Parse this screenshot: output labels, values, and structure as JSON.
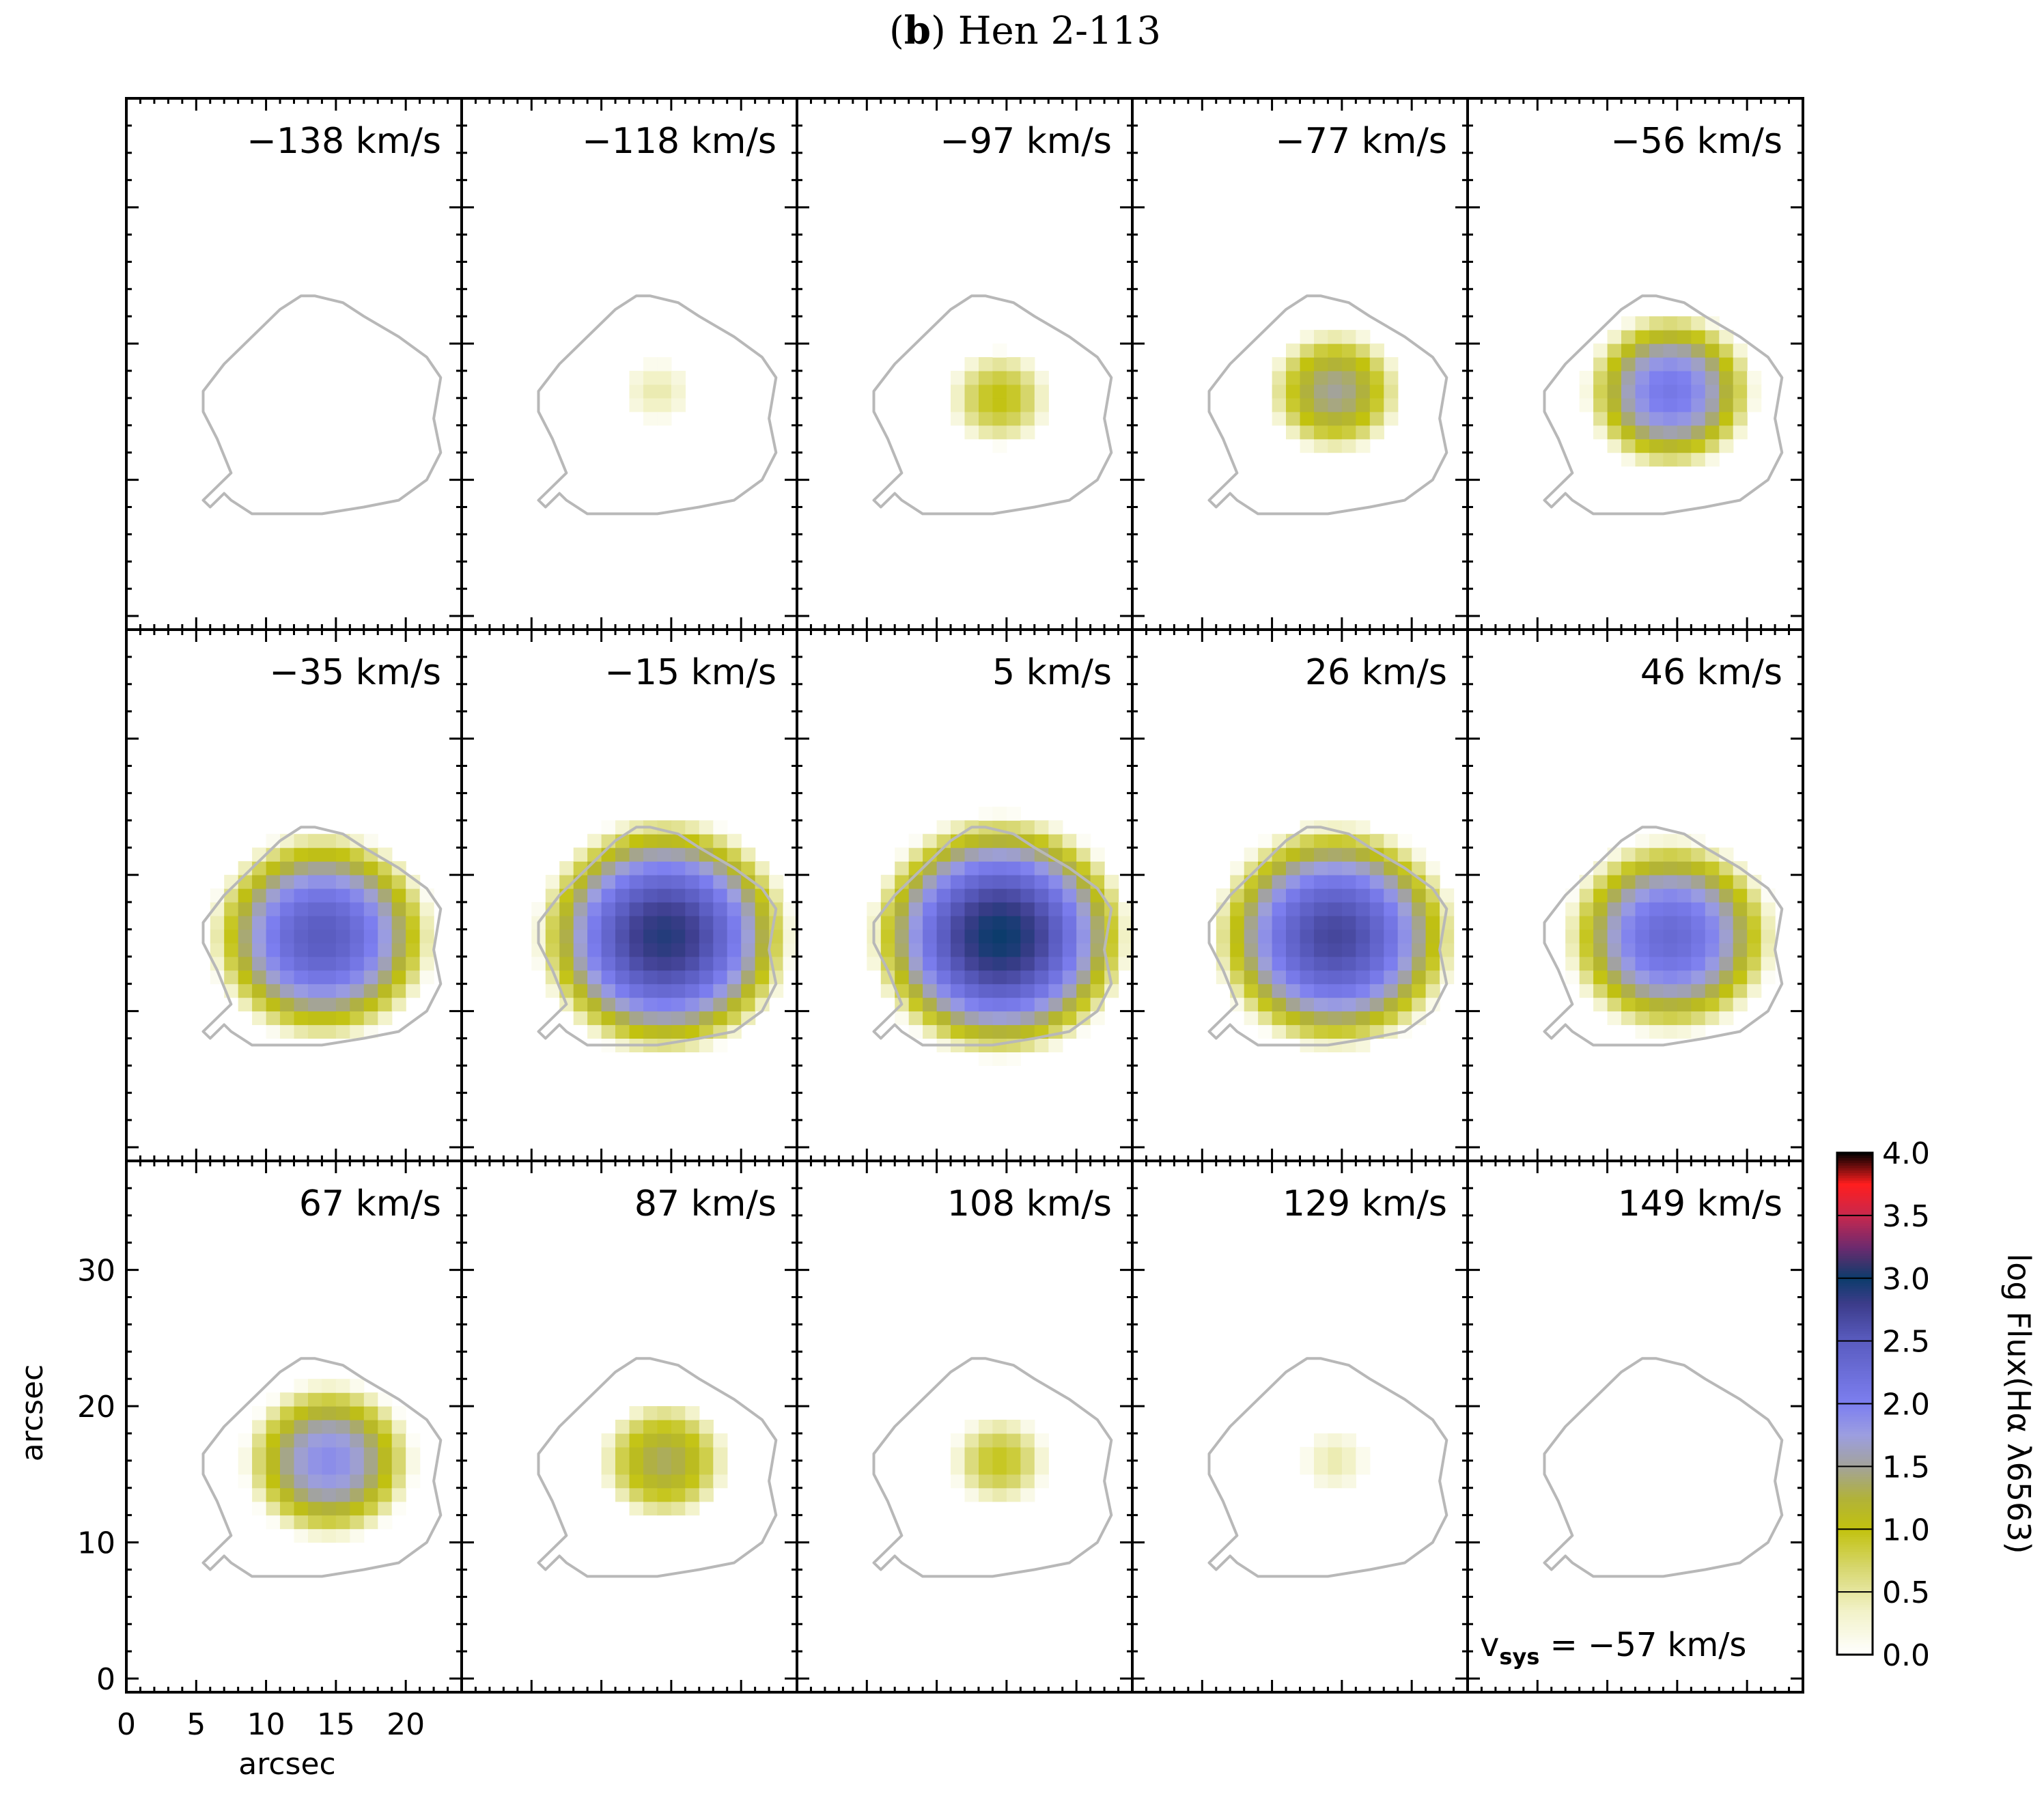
{
  "figure": {
    "panel_letter": "b",
    "title": "Hen 2-113",
    "vsys_symbol": "v",
    "vsys_subscript": "sys",
    "vsys_text": "= −57 km/s"
  },
  "chart_data": {
    "type": "heatmap",
    "title": "Hen 2-113",
    "quantity": "log Flux(Hα λ6563)",
    "xlabel": "arcsec",
    "ylabel": "arcsec",
    "xlim": [
      0,
      24
    ],
    "ylim": [
      -1,
      38
    ],
    "xticks": [
      0,
      5,
      10,
      15,
      20
    ],
    "yticks": [
      0,
      10,
      20,
      30
    ],
    "xtick_labels": [
      "0",
      "5",
      "10",
      "15",
      "20"
    ],
    "ytick_labels": [
      "0",
      "10",
      "20",
      "30"
    ],
    "grid": false,
    "systemic_velocity_kms": -57,
    "channels": [
      {
        "label": "−138 km/s",
        "velocity": -138,
        "center": [
          14.5,
          16.5
        ],
        "peak_log_flux": 0.0,
        "radius": 4.0
      },
      {
        "label": "−118 km/s",
        "velocity": -118,
        "center": [
          14.0,
          16.5
        ],
        "peak_log_flux": 0.45,
        "radius": 2.5
      },
      {
        "label": "−97 km/s",
        "velocity": -97,
        "center": [
          14.5,
          16.0
        ],
        "peak_log_flux": 1.0,
        "radius": 3.8
      },
      {
        "label": "−77 km/s",
        "velocity": -77,
        "center": [
          14.5,
          16.5
        ],
        "peak_log_flux": 1.5,
        "radius": 5.0
      },
      {
        "label": "−56 km/s",
        "velocity": -56,
        "center": [
          14.5,
          16.5
        ],
        "peak_log_flux": 2.1,
        "radius": 6.3
      },
      {
        "label": "−35 km/s",
        "velocity": -35,
        "center": [
          14.0,
          15.5
        ],
        "peak_log_flux": 2.5,
        "radius": 8.3
      },
      {
        "label": "−15 km/s",
        "velocity": -15,
        "center": [
          14.5,
          15.5
        ],
        "peak_log_flux": 2.9,
        "radius": 9.4
      },
      {
        "label": "5 km/s",
        "velocity": 5,
        "center": [
          14.5,
          15.5
        ],
        "peak_log_flux": 3.0,
        "radius": 9.6
      },
      {
        "label": "26 km/s",
        "velocity": 26,
        "center": [
          14.5,
          15.5
        ],
        "peak_log_flux": 2.7,
        "radius": 9.0
      },
      {
        "label": "46 km/s",
        "velocity": 46,
        "center": [
          14.5,
          15.5
        ],
        "peak_log_flux": 2.3,
        "radius": 7.8
      },
      {
        "label": "67 km/s",
        "velocity": 67,
        "center": [
          14.5,
          16.0
        ],
        "peak_log_flux": 1.9,
        "radius": 6.3
      },
      {
        "label": "87 km/s",
        "velocity": 87,
        "center": [
          14.5,
          16.0
        ],
        "peak_log_flux": 1.35,
        "radius": 4.8
      },
      {
        "label": "108 km/s",
        "velocity": 108,
        "center": [
          14.5,
          16.0
        ],
        "peak_log_flux": 0.95,
        "radius": 3.6
      },
      {
        "label": "129 km/s",
        "velocity": 129,
        "center": [
          14.5,
          16.0
        ],
        "peak_log_flux": 0.45,
        "radius": 2.4
      },
      {
        "label": "149 km/s",
        "velocity": 149,
        "center": [
          14.5,
          16.5
        ],
        "peak_log_flux": 0.0,
        "radius": 4.0
      }
    ],
    "contour_outline": [
      [
        12.5,
        23.5
      ],
      [
        13.5,
        23.5
      ],
      [
        15.5,
        23
      ],
      [
        17,
        22
      ],
      [
        19.5,
        20.5
      ],
      [
        21.5,
        19
      ],
      [
        22.5,
        17.5
      ],
      [
        22,
        14.5
      ],
      [
        22.5,
        12
      ],
      [
        21.5,
        10
      ],
      [
        19.5,
        8.5
      ],
      [
        17,
        8
      ],
      [
        14,
        7.5
      ],
      [
        11,
        7.5
      ],
      [
        9,
        7.5
      ],
      [
        7.5,
        8.5
      ],
      [
        7,
        9
      ],
      [
        6,
        8
      ],
      [
        5.5,
        8.5
      ],
      [
        6.5,
        9.5
      ],
      [
        7.5,
        10.5
      ],
      [
        6.5,
        13
      ],
      [
        5.5,
        15
      ],
      [
        5.5,
        16.5
      ],
      [
        7,
        18.5
      ],
      [
        9,
        20.5
      ],
      [
        11,
        22.5
      ]
    ],
    "colorbar": {
      "label": "log Flux(Hα λ6563)",
      "range": [
        0.0,
        4.0
      ],
      "tick_labels": [
        "0.0",
        "0.5",
        "1.0",
        "1.5",
        "2.0",
        "2.5",
        "3.0",
        "3.5",
        "4.0"
      ],
      "stops": [
        {
          "value": 0.0,
          "color": "#ffffff"
        },
        {
          "value": 0.35,
          "color": "#f2f2c8"
        },
        {
          "value": 0.7,
          "color": "#d6d66c"
        },
        {
          "value": 1.0,
          "color": "#c2c20e"
        },
        {
          "value": 1.25,
          "color": "#b1b23a"
        },
        {
          "value": 1.5,
          "color": "#a3a39a"
        },
        {
          "value": 1.75,
          "color": "#9c9ee0"
        },
        {
          "value": 2.0,
          "color": "#7d7ff0"
        },
        {
          "value": 2.5,
          "color": "#5a5cc0"
        },
        {
          "value": 2.8,
          "color": "#3c3c8a"
        },
        {
          "value": 3.0,
          "color": "#0c3c6c"
        },
        {
          "value": 3.25,
          "color": "#6e2a6e"
        },
        {
          "value": 3.5,
          "color": "#c8284e"
        },
        {
          "value": 3.75,
          "color": "#ff1e1e"
        },
        {
          "value": 4.0,
          "color": "#000000"
        }
      ]
    },
    "outline_color": "#b8b8b8",
    "frame_color": "#000000"
  }
}
